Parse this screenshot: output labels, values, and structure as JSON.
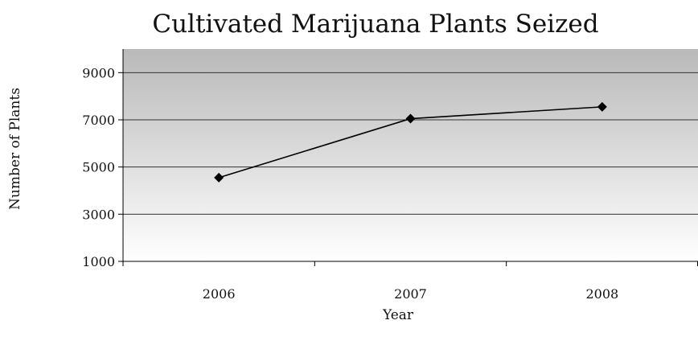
{
  "chart_data": {
    "type": "line",
    "title": "Cultivated Marijuana Plants Seized",
    "xlabel": "Year",
    "ylabel": "Number of Plants",
    "categories": [
      "2006",
      "2007",
      "2008"
    ],
    "series": [
      {
        "values": [
          4550,
          7050,
          7550
        ]
      }
    ],
    "ylim": [
      1000,
      10000
    ],
    "yticks": [
      1000,
      3000,
      5000,
      7000,
      9000
    ],
    "grid": true,
    "legend": "none",
    "colors": {
      "line": "#000000",
      "marker": "#000000",
      "plot_bg_top": "#b9b9b9",
      "plot_bg_bottom": "#ffffff",
      "grid": "#333333"
    }
  }
}
